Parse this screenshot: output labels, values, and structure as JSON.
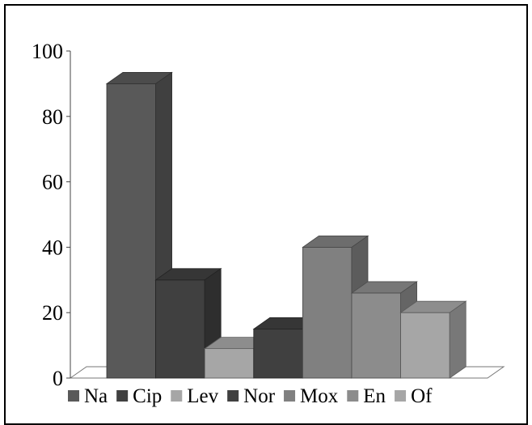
{
  "chart_data": {
    "type": "bar",
    "title": "",
    "xlabel": "",
    "ylabel": "",
    "ylim": [
      0,
      100
    ],
    "yticks": [
      0,
      20,
      40,
      60,
      80,
      100
    ],
    "categories": [
      "Na",
      "Cip",
      "Lev",
      "Nor",
      "Mox",
      "En",
      "Of"
    ],
    "values": [
      90,
      30,
      9,
      15,
      40,
      26,
      20
    ],
    "colors": [
      "#595959",
      "#404040",
      "#a6a6a6",
      "#404040",
      "#808080",
      "#8c8c8c",
      "#a6a6a6"
    ],
    "legend": "bottom",
    "grid": false,
    "style": "3d"
  }
}
